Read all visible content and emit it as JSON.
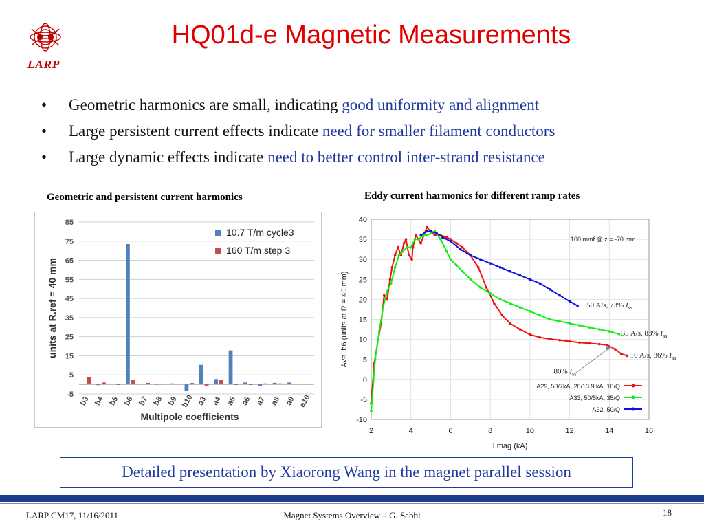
{
  "header": {
    "logo_text": "LARP",
    "title": "HQ01d-e Magnetic Measurements"
  },
  "bullets": [
    {
      "text": "Geometric harmonics are small, indicating ",
      "highlight": "good uniformity and alignment"
    },
    {
      "text": "Large persistent current effects indicate ",
      "highlight": "need for smaller filament conductors"
    },
    {
      "text": "Large dynamic effects indicate ",
      "highlight": "need to better control inter-strand resistance"
    }
  ],
  "bullet_symbol": "•",
  "captions": {
    "left": "Geometric and persistent current harmonics",
    "right": "Eddy current harmonics for different ramp rates"
  },
  "colors": {
    "title": "#e00000",
    "highlight": "#1f3a9f",
    "bar_blue": "#4f81bd",
    "bar_red": "#c0504d",
    "line_red": "#ee1111",
    "line_green": "#11ee11",
    "line_blue": "#1111dd"
  },
  "chart_data": [
    {
      "type": "bar",
      "categories": [
        "b3",
        "b4",
        "b5",
        "b6",
        "b7",
        "b8",
        "b9",
        "b10",
        "a3",
        "a4",
        "a5",
        "a6",
        "a7",
        "a8",
        "a9",
        "a10"
      ],
      "series": [
        {
          "name": "10.7 T/m cycle3",
          "values": [
            0.2,
            -0.4,
            0.3,
            73.5,
            0.3,
            0.1,
            0.5,
            -3.2,
            10.2,
            2.8,
            17.8,
            1.0,
            -0.7,
            0.8,
            1.0,
            0.4
          ]
        },
        {
          "name": "160 T/m step 3",
          "values": [
            4.0,
            1.0,
            -0.3,
            2.5,
            0.8,
            0.2,
            0.3,
            0.7,
            -0.8,
            2.5,
            -0.3,
            -0.3,
            0.5,
            0.5,
            0.3,
            0.3
          ]
        }
      ],
      "xlabel": "Multipole coefficients",
      "ylabel": "units  at R.ref = 40 mm",
      "ylim": [
        -5,
        85
      ],
      "yticks": [
        -5,
        5,
        15,
        25,
        35,
        45,
        55,
        65,
        75,
        85
      ],
      "grid": true,
      "legend": "top-right"
    },
    {
      "type": "line",
      "xlabel": "I.mag (kA)",
      "ylabel": "Ave. b6 (units at R = 40 mm)",
      "xlim": [
        2,
        16
      ],
      "ylim": [
        -10,
        40
      ],
      "xticks": [
        2,
        4,
        6,
        8,
        10,
        12,
        14,
        16
      ],
      "yticks": [
        -10,
        -5,
        0,
        5,
        10,
        15,
        20,
        25,
        30,
        35,
        40
      ],
      "annotation": "100 mmf @ z = -70 mm",
      "curve_labels": [
        {
          "text": "50 A/s, 73% ",
          "sym": "I",
          "sub": "ss",
          "x": 12.85,
          "y": 18.0
        },
        {
          "text": "35 A/s, 83% ",
          "sym": "I",
          "sub": "ss",
          "x": 14.6,
          "y": 11.0
        },
        {
          "text": "10 A/s, 86% ",
          "sym": "I",
          "sub": "ss",
          "x": 15.05,
          "y": 5.5
        },
        {
          "text": "80% ",
          "sym": "I",
          "sub": "ss",
          "x": 11.2,
          "y": 1.4
        }
      ],
      "legend": "bottom-right",
      "series": [
        {
          "name": "A29, 50/7kA, 20/13.9 kA, 10/Q",
          "color": "#ee1111",
          "x": [
            2.0,
            2.15,
            2.35,
            2.5,
            2.65,
            2.8,
            2.95,
            3.05,
            3.2,
            3.35,
            3.5,
            3.65,
            3.75,
            3.9,
            4.05,
            4.1,
            4.25,
            4.5,
            4.65,
            4.8,
            5.0,
            5.2,
            5.5,
            5.8,
            6.0,
            6.3,
            6.6,
            7.0,
            7.4,
            7.8,
            8.2,
            8.6,
            9.0,
            9.5,
            10.0,
            10.5,
            11.0,
            11.5,
            12.0,
            12.5,
            13.0,
            13.5,
            13.9,
            14.3,
            14.6,
            14.9
          ],
          "y": [
            -6,
            4,
            10,
            14,
            21,
            20,
            25,
            28,
            31,
            33,
            31,
            34,
            35,
            31,
            30,
            33,
            36,
            34,
            36,
            38,
            37,
            36,
            36,
            35.5,
            35,
            34,
            33,
            31,
            28,
            23,
            19,
            16,
            14,
            12.5,
            11.2,
            10.5,
            10.1,
            9.8,
            9.5,
            9.2,
            9.0,
            8.8,
            8.6,
            7.5,
            6.4,
            5.9
          ]
        },
        {
          "name": "A33, 50/5kA, 35/Q",
          "color": "#11ee11",
          "x": [
            2.0,
            2.2,
            2.4,
            2.6,
            2.8,
            3.0,
            3.2,
            3.4,
            3.6,
            3.8,
            4.0,
            4.2,
            4.4,
            4.6,
            4.8,
            5.0,
            5.2,
            5.5,
            5.8,
            6.0,
            6.3,
            6.6,
            7.0,
            7.5,
            8.0,
            8.5,
            9.0,
            9.5,
            10.0,
            10.5,
            11.0,
            11.5,
            12.0,
            12.5,
            13.0,
            13.5,
            14.0,
            14.5
          ],
          "y": [
            -8,
            5,
            12,
            18,
            22,
            24,
            28,
            31,
            32,
            33,
            33,
            35,
            35,
            36,
            36,
            36.5,
            37,
            35,
            32,
            30,
            28.5,
            27,
            25,
            23,
            21.5,
            20,
            19,
            18,
            17,
            16,
            15,
            14.5,
            14,
            13.5,
            13,
            12.5,
            12,
            11.3
          ]
        },
        {
          "name": "A32, 50/Q",
          "color": "#1111dd",
          "x": [
            4.5,
            4.8,
            5.0,
            5.3,
            5.6,
            6.0,
            6.5,
            7.0,
            7.5,
            8.0,
            8.5,
            9.0,
            9.5,
            10.0,
            10.5,
            11.0,
            11.5,
            12.0,
            12.4
          ],
          "y": [
            36,
            37,
            37,
            36.5,
            35.5,
            34.5,
            32.5,
            31,
            30,
            29,
            28,
            27,
            26,
            25,
            24,
            22.5,
            21,
            19.5,
            18.4
          ]
        }
      ]
    }
  ],
  "note": "Detailed presentation by Xiaorong Wang in the magnet parallel session",
  "footer": {
    "left": "LARP CM17, 11/16/2011",
    "center": "Magnet Systems Overview – G. Sabbi",
    "page": "18"
  }
}
